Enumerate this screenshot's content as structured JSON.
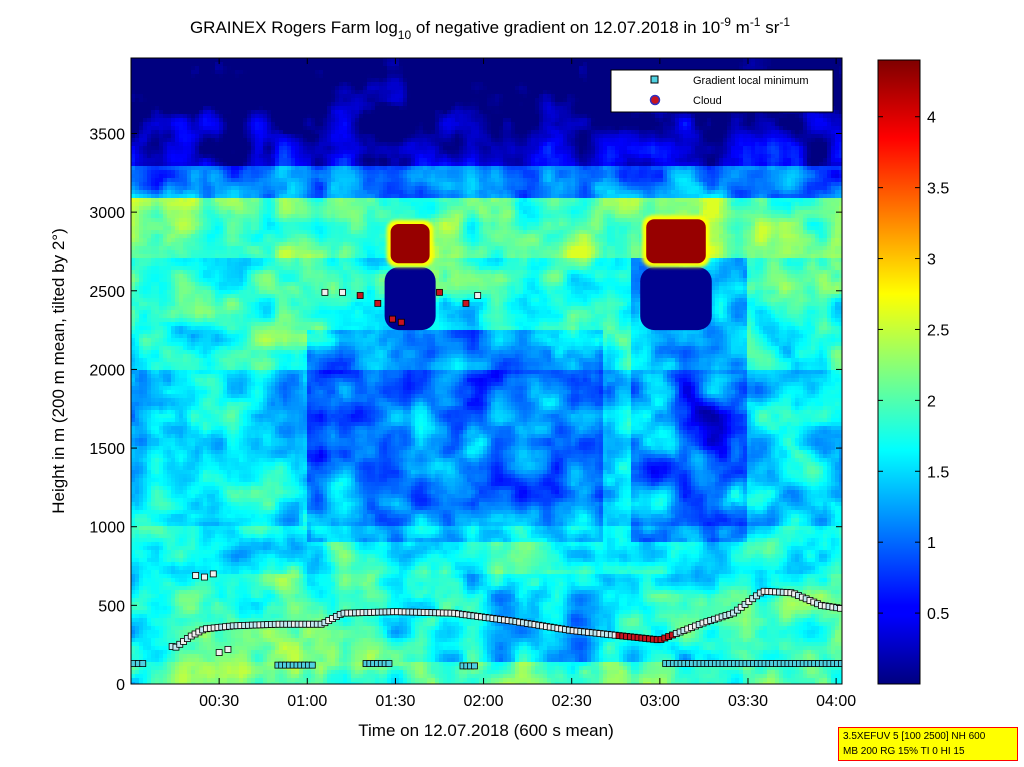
{
  "chart_data": {
    "type": "heatmap",
    "title": "GRAINEX Rogers Farm log10 of negative gradient on 12.07.2018 in 10-9 m-1 sr-1",
    "title_parts": {
      "main": "GRAINEX Rogers Farm log",
      "sub": "10",
      "mid": " of negative gradient on 12.07.2018 in 10",
      "sup1": "-9",
      "mid2": " m",
      "sup2": "-1",
      "mid3": " sr",
      "sup3": "-1"
    },
    "xlabel": "Time on 12.07.2018 (600 s mean)",
    "ylabel": "Height in m (200 m mean, tilted by 2°)",
    "x_ticks": [
      "00:30",
      "01:00",
      "01:30",
      "02:00",
      "02:30",
      "03:00",
      "03:30",
      "04:00"
    ],
    "x_tick_minutes": [
      30,
      60,
      90,
      120,
      150,
      180,
      210,
      240
    ],
    "xlim_minutes": [
      0,
      242
    ],
    "y_ticks": [
      "0",
      "500",
      "1000",
      "1500",
      "2000",
      "2500",
      "3000",
      "3500"
    ],
    "y_tick_values": [
      0,
      500,
      1000,
      1500,
      2000,
      2500,
      3000,
      3500
    ],
    "ylim": [
      0,
      3980
    ],
    "colorbar": {
      "ticks": [
        "0.5",
        "1",
        "1.5",
        "2",
        "2.5",
        "3",
        "3.5",
        "4"
      ],
      "tick_values": [
        0.5,
        1,
        1.5,
        2,
        2.5,
        3,
        3.5,
        4
      ],
      "range": [
        0,
        4.4
      ],
      "colormap": "jet"
    },
    "legend": {
      "placement": "top-right",
      "entries": [
        {
          "label": "Gradient local minimum",
          "marker": "square",
          "color": "#4fd0e0"
        },
        {
          "label": "Cloud",
          "marker": "circle",
          "color": "#c8141e",
          "edge": "#3030c0"
        }
      ]
    },
    "clouds": [
      {
        "t_start": 87,
        "t_end": 103,
        "base_m": 2650,
        "top_m": 2950,
        "value": 4.3
      },
      {
        "t_start": 174,
        "t_end": 197,
        "base_m": 2650,
        "top_m": 2980,
        "value": 4.3
      }
    ],
    "gradient_minima": {
      "lower_layer_m": 130,
      "main_layer": [
        {
          "t": 0,
          "h": 360
        },
        {
          "t": 15,
          "h": 230
        },
        {
          "t": 20,
          "h": 300
        },
        {
          "t": 25,
          "h": 350
        },
        {
          "t": 35,
          "h": 370
        },
        {
          "t": 50,
          "h": 380
        },
        {
          "t": 65,
          "h": 380
        },
        {
          "t": 72,
          "h": 450
        },
        {
          "t": 90,
          "h": 460
        },
        {
          "t": 110,
          "h": 450
        },
        {
          "t": 130,
          "h": 400
        },
        {
          "t": 150,
          "h": 340
        },
        {
          "t": 165,
          "h": 310
        },
        {
          "t": 180,
          "h": 280
        },
        {
          "t": 195,
          "h": 390
        },
        {
          "t": 205,
          "h": 450
        },
        {
          "t": 215,
          "h": 590
        },
        {
          "t": 225,
          "h": 580
        },
        {
          "t": 235,
          "h": 500
        },
        {
          "t": 242,
          "h": 480
        }
      ],
      "upper_layer": [
        {
          "t": 66,
          "h": 2490
        },
        {
          "t": 72,
          "h": 2490
        },
        {
          "t": 78,
          "h": 2470
        },
        {
          "t": 84,
          "h": 2420
        },
        {
          "t": 89,
          "h": 2320
        },
        {
          "t": 92,
          "h": 2300
        },
        {
          "t": 105,
          "h": 2490
        },
        {
          "t": 114,
          "h": 2420
        },
        {
          "t": 118,
          "h": 2470
        }
      ],
      "misc": [
        {
          "t": 22,
          "h": 690
        },
        {
          "t": 25,
          "h": 680
        },
        {
          "t": 28,
          "h": 700
        },
        {
          "t": 30,
          "h": 200
        },
        {
          "t": 33,
          "h": 220
        }
      ]
    },
    "annotation_lines": [
      "3.5XEFUV 5 [100 2500] NH 600",
      "MB 200 RG 15% TI 0 HI 15"
    ]
  }
}
